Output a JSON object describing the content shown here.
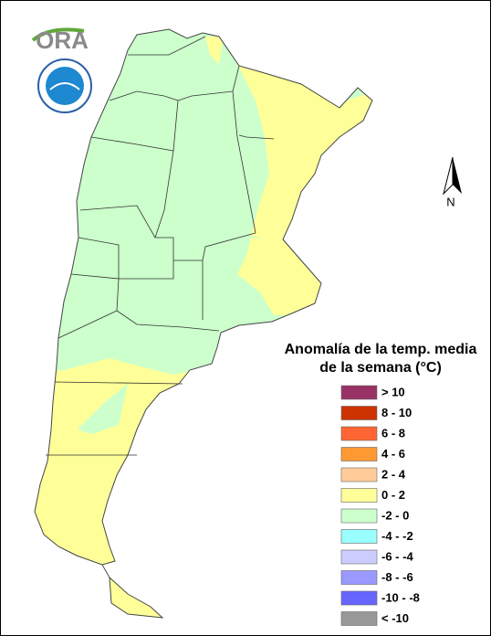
{
  "logo": {
    "text": "ORA"
  },
  "north_arrow": {
    "label": "N"
  },
  "legend": {
    "title_lines": [
      "Anomalía de la temp. media",
      "de la semana (°C)"
    ],
    "items": [
      {
        "label": "> 10",
        "color": "#993366"
      },
      {
        "label": "8 - 10",
        "color": "#cc3300"
      },
      {
        "label": "6 - 8",
        "color": "#ff6633"
      },
      {
        "label": "4 - 6",
        "color": "#ff9933"
      },
      {
        "label": "2 - 4",
        "color": "#ffcc99"
      },
      {
        "label": "0 - 2",
        "color": "#ffff99"
      },
      {
        "label": "-2 - 0",
        "color": "#ccffcc"
      },
      {
        "label": "-4 - -2",
        "color": "#99ffff"
      },
      {
        "label": "-6 - -4",
        "color": "#ccccff"
      },
      {
        "label": "-8 - -6",
        "color": "#9999ff"
      },
      {
        "label": "-10 - -8",
        "color": "#6666ff"
      },
      {
        "label": "< -10",
        "color": "#999999"
      }
    ]
  }
}
